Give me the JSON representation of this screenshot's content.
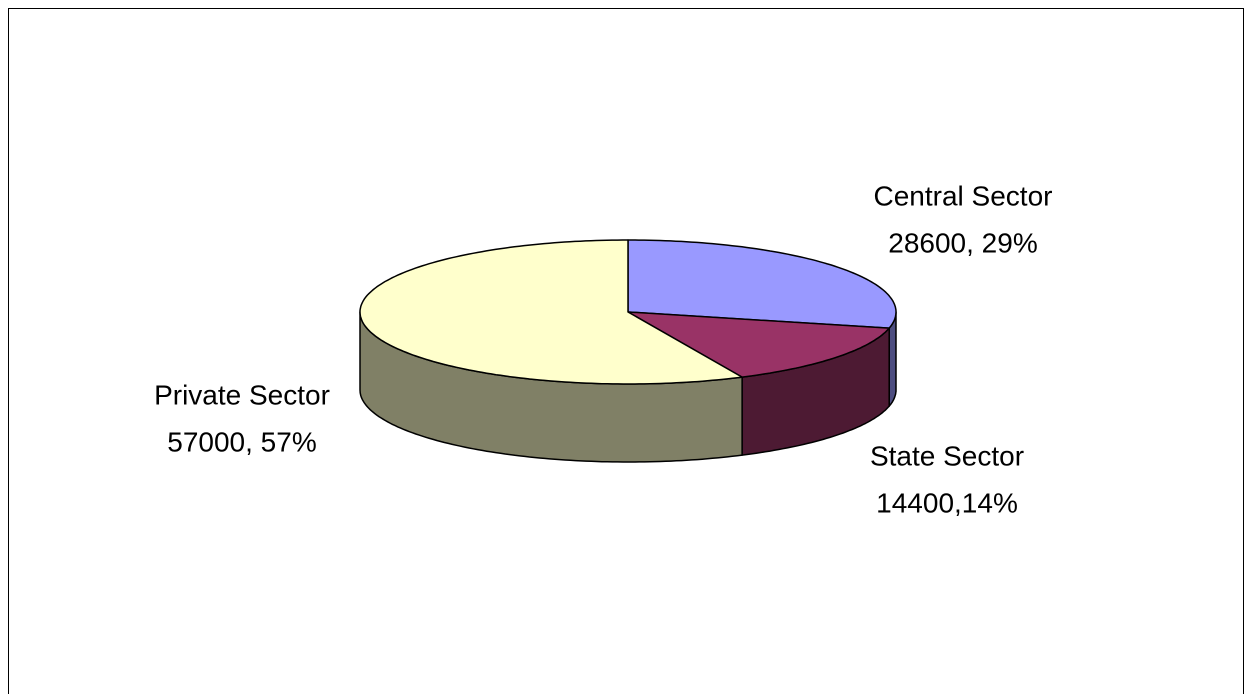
{
  "chart_data": {
    "type": "pie3d",
    "categories": [
      "Central Sector",
      "State Sector",
      "Private Sector"
    ],
    "values": [
      28600,
      14400,
      57000
    ],
    "value_labels": [
      "28600, 29%",
      "14400,14%",
      "57000, 57%"
    ],
    "colors": [
      "#9999ff",
      "#993366",
      "#ffffcc"
    ]
  }
}
